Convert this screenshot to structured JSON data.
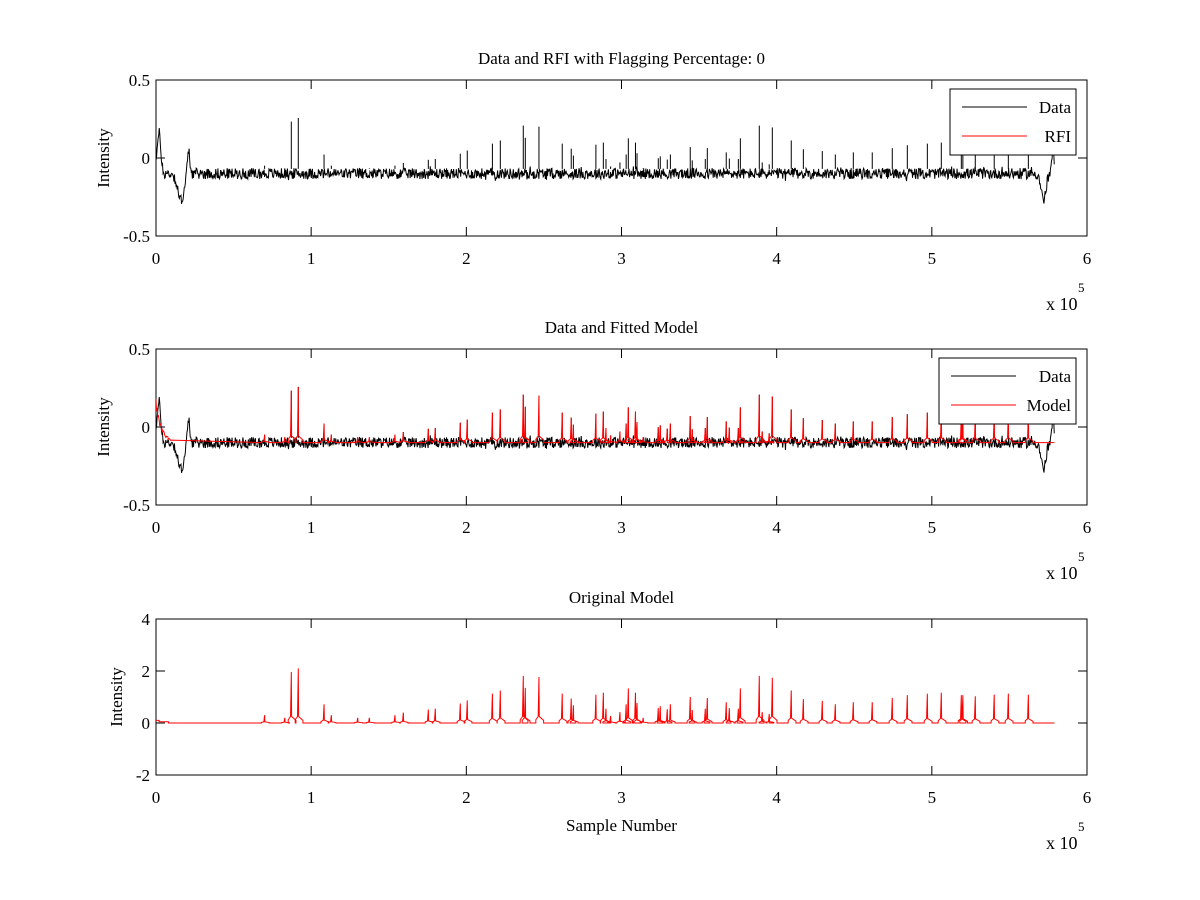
{
  "chart_data": [
    {
      "type": "line",
      "title": "Data and RFI with Flagging Percentage: 0",
      "xlabel": "",
      "ylabel": "Intensity",
      "xlim": [
        0,
        6
      ],
      "ylim": [
        -0.5,
        0.5
      ],
      "xticks": [
        "0",
        "1",
        "2",
        "3",
        "4",
        "5",
        "6"
      ],
      "yticks": [
        "-0.5",
        "0",
        "0.5"
      ],
      "x_multiplier": "x 10",
      "x_multiplier_exp": "5",
      "legend": {
        "placement": "top-right",
        "entries": [
          {
            "label": "Data",
            "color": "#000000"
          },
          {
            "label": "RFI",
            "color": "#ff0000"
          }
        ]
      },
      "series": [
        {
          "name": "Data",
          "color": "#000000",
          "baseline": -0.1,
          "noise": 0.035,
          "spike_scale": 0.17,
          "x_end": 5.79
        },
        {
          "name": "RFI",
          "color": "#ff0000",
          "values": []
        }
      ]
    },
    {
      "type": "line",
      "title": "Data and Fitted Model",
      "xlabel": "",
      "ylabel": "Intensity",
      "xlim": [
        0,
        6
      ],
      "ylim": [
        -0.5,
        0.5
      ],
      "xticks": [
        "0",
        "1",
        "2",
        "3",
        "4",
        "5",
        "6"
      ],
      "yticks": [
        "-0.5",
        "0",
        "0.5"
      ],
      "x_multiplier": "x 10",
      "x_multiplier_exp": "5",
      "legend": {
        "placement": "top-right",
        "entries": [
          {
            "label": "Data",
            "color": "#000000"
          },
          {
            "label": "Model",
            "color": "#ff0000"
          }
        ]
      },
      "series": [
        {
          "name": "Data",
          "color": "#000000",
          "baseline": -0.1,
          "noise": 0.035,
          "spike_scale": 0.17,
          "x_end": 5.79
        },
        {
          "name": "Model",
          "color": "#ff0000",
          "baseline": -0.1,
          "spike_scale": 0.17,
          "x_end": 5.79
        }
      ]
    },
    {
      "type": "line",
      "title": "Original Model",
      "xlabel": "Sample Number",
      "ylabel": "Intensity",
      "xlim": [
        0,
        6
      ],
      "ylim": [
        -2,
        4
      ],
      "xticks": [
        "0",
        "1",
        "2",
        "3",
        "4",
        "5",
        "6"
      ],
      "yticks": [
        "-2",
        "0",
        "2",
        "4"
      ],
      "x_multiplier": "x 10",
      "x_multiplier_exp": "5",
      "series": [
        {
          "name": "Original Model",
          "color": "#ff0000",
          "baseline": 0,
          "spike_scale": 1,
          "x_end": 5.79
        }
      ]
    }
  ],
  "spikes": {
    "x_units": "samples x 10^5",
    "x": [
      0.7,
      0.83,
      0.872,
      0.917,
      1.083,
      1.13,
      1.3,
      1.375,
      1.54,
      1.594,
      1.755,
      1.8,
      1.961,
      2.006,
      2.168,
      2.219,
      2.367,
      2.38,
      2.468,
      2.618,
      2.676,
      2.69,
      2.835,
      2.883,
      2.9,
      2.93,
      2.99,
      3.03,
      3.044,
      3.09,
      3.1,
      3.14,
      3.237,
      3.25,
      3.295,
      3.315,
      3.443,
      3.456,
      3.54,
      3.553,
      3.675,
      3.695,
      3.753,
      3.766,
      3.888,
      3.907,
      3.952,
      3.972,
      4.094,
      4.172,
      4.294,
      4.378,
      4.494,
      4.616,
      4.745,
      4.842,
      4.971,
      5.061,
      5.19,
      5.2,
      5.28,
      5.402,
      5.493,
      5.622
    ],
    "amplitude": [
      0.3,
      0.2,
      1.96,
      2.1,
      0.72,
      0.3,
      0.2,
      0.2,
      0.3,
      0.4,
      0.52,
      0.55,
      0.75,
      0.87,
      1.13,
      1.25,
      1.81,
      1.35,
      1.77,
      1.13,
      0.94,
      0.68,
      1.09,
      1.17,
      0.55,
      0.27,
      0.42,
      0.72,
      1.33,
      1.17,
      0.77,
      0.2,
      0.58,
      0.65,
      0.53,
      0.72,
      1.0,
      0.5,
      0.55,
      0.96,
      0.8,
      0.57,
      0.55,
      1.33,
      1.81,
      0.42,
      0.35,
      1.74,
      1.25,
      0.92,
      0.85,
      0.72,
      0.8,
      0.8,
      0.96,
      1.07,
      1.13,
      1.17,
      1.07,
      1.07,
      1.03,
      1.09,
      1.13,
      1.09
    ]
  }
}
